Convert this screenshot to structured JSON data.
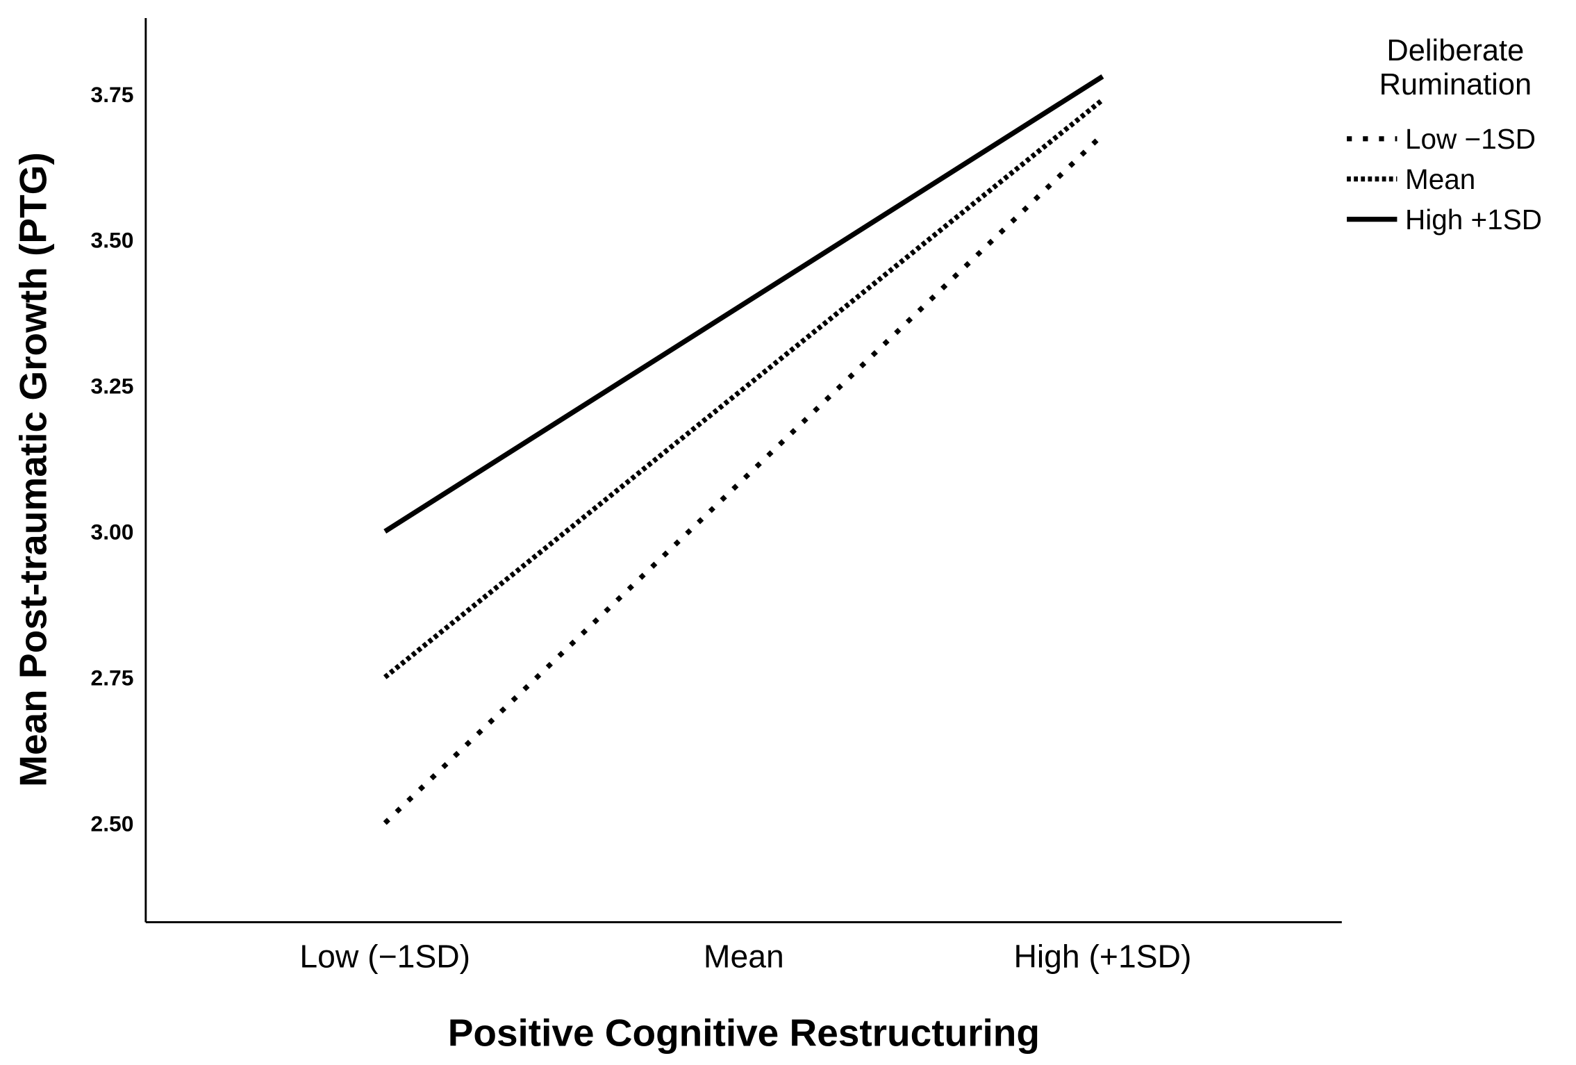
{
  "chart_data": {
    "type": "line",
    "x_label": "Positive Cognitive Restructuring",
    "y_label": "Mean Post-traumatic Growth (PTG)",
    "categories": [
      "Low (−1SD)",
      "Mean",
      "High (+1SD)"
    ],
    "legend_title": "Deliberate Rumination",
    "series": [
      {
        "name": "Low −1SD",
        "color": "#000000",
        "dash": "dotted-sparse",
        "values": [
          2.5,
          3.09,
          3.68
        ]
      },
      {
        "name": "Mean",
        "color": "#000000",
        "dash": "dotted-dense",
        "values": [
          2.75,
          3.245,
          3.74
        ]
      },
      {
        "name": "High +1SD",
        "color": "#000000",
        "dash": "solid",
        "values": [
          3.0,
          3.39,
          3.78
        ]
      }
    ],
    "ylim": [
      2.33,
      3.88
    ],
    "yticks": [
      {
        "value": 2.5,
        "label": "2.50"
      },
      {
        "value": 2.75,
        "label": "2.75"
      },
      {
        "value": 3.0,
        "label": "3.00"
      },
      {
        "value": 3.25,
        "label": "3.25"
      },
      {
        "value": 3.5,
        "label": "3.50"
      },
      {
        "value": 3.75,
        "label": "3.75"
      }
    ],
    "grid": false,
    "legend_position": "top-right"
  }
}
